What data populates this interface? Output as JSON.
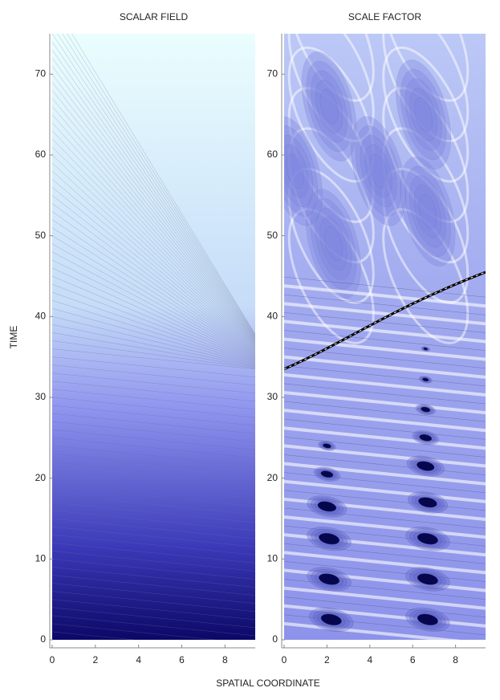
{
  "chart_data": [
    {
      "type": "contour",
      "title": "SCALAR FIELD",
      "ylabel": "TIME",
      "xlim": [
        0,
        9.4
      ],
      "ylim": [
        0,
        75
      ],
      "xticks": [
        0,
        2,
        4,
        6,
        8
      ],
      "yticks": [
        0,
        10,
        20,
        30,
        40,
        50,
        60,
        70
      ]
    },
    {
      "type": "contour",
      "title": "SCALE FACTOR",
      "xlabel": "SPATIAL COORDINATE",
      "xlim": [
        0,
        9.4
      ],
      "ylim": [
        0,
        75
      ],
      "xticks": [
        0,
        2,
        4,
        6,
        8
      ],
      "yticks": [
        0,
        10,
        20,
        30,
        40,
        50,
        60,
        70
      ]
    }
  ]
}
